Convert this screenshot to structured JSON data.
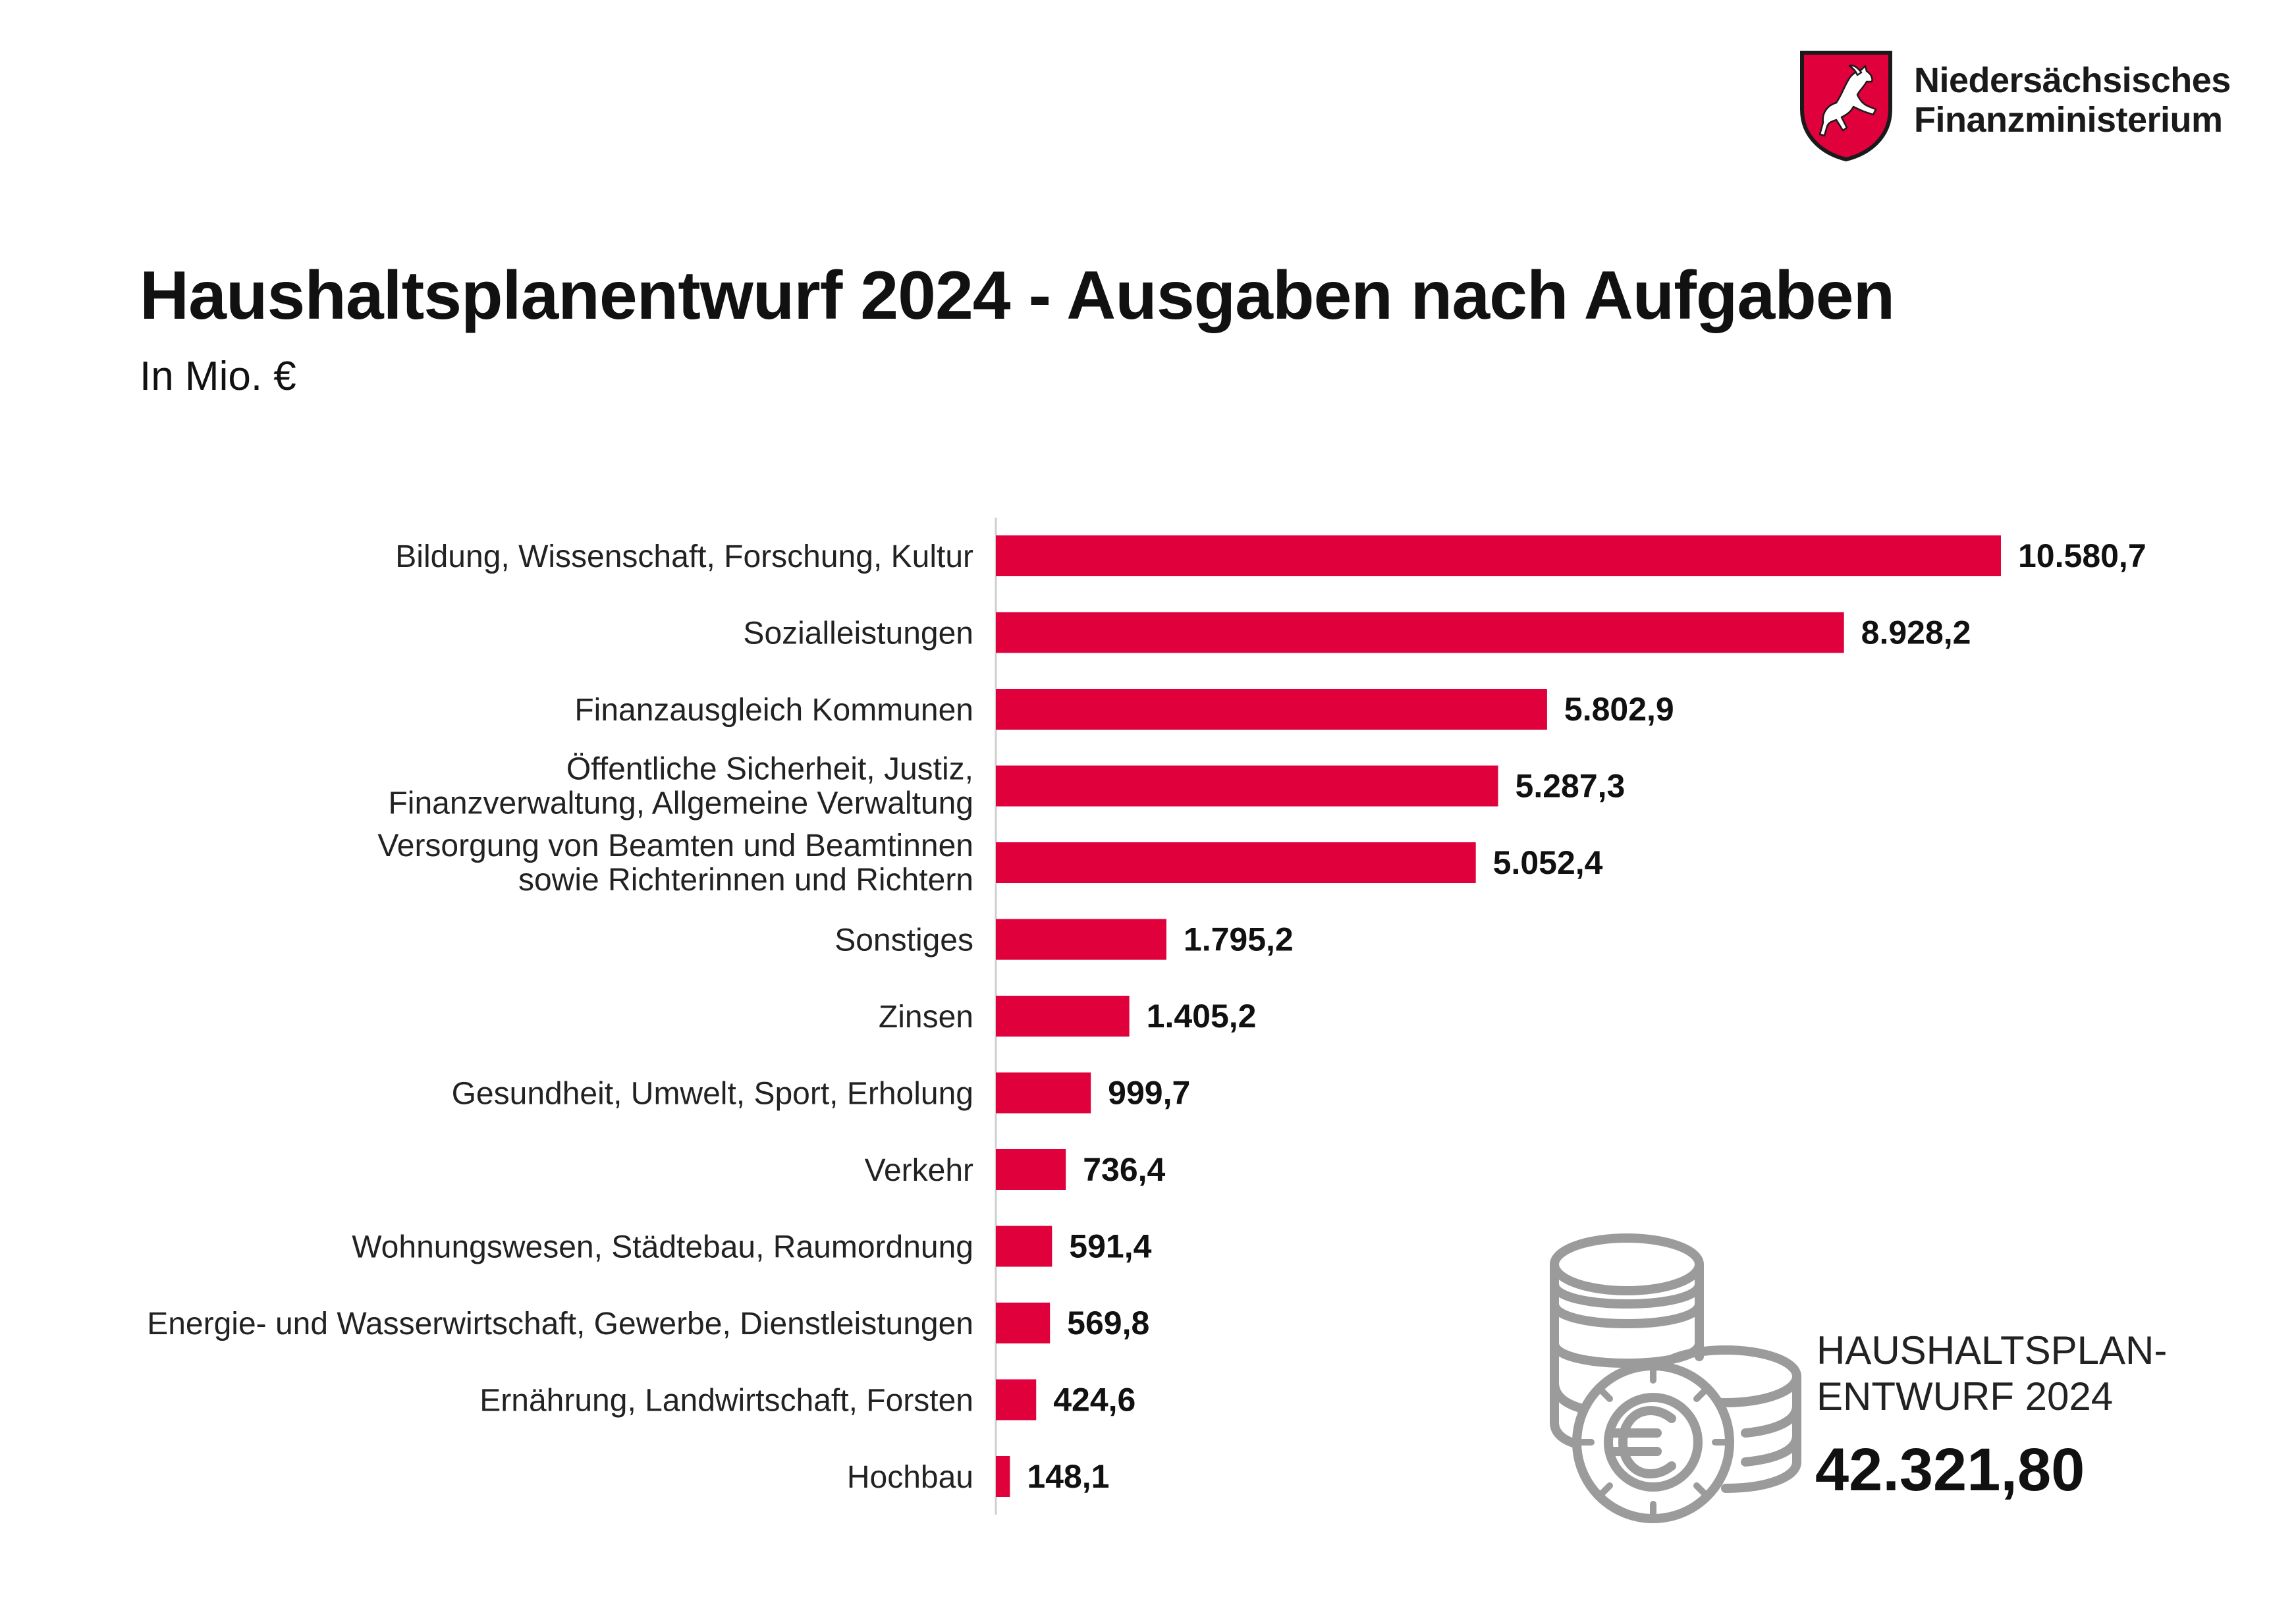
{
  "header": {
    "logo_line1": "Niedersächsisches",
    "logo_line2": "Finanzministerium"
  },
  "colors": {
    "accent": "#e0003c",
    "axis": "#cfcfcf",
    "coin_icon": "#9b9b9b"
  },
  "icons": {
    "logo": "lower-saxony-horse-shield-icon",
    "coins": "euro-coin-stack-icon"
  },
  "chart_data": {
    "type": "bar",
    "orientation": "horizontal",
    "title": "Haushaltsplanentwurf 2024 - Ausgaben nach Aufgaben",
    "subtitle": "In Mio. €",
    "categories": [
      [
        "Bildung, Wissenschaft, Forschung, Kultur"
      ],
      [
        "Sozialleistungen"
      ],
      [
        "Finanzausgleich Kommunen"
      ],
      [
        "Öffentliche Sicherheit, Justiz,",
        "Finanzverwaltung, Allgemeine Verwaltung"
      ],
      [
        "Versorgung von Beamten und Beamtinnen",
        "sowie Richterinnen und Richtern"
      ],
      [
        "Sonstiges"
      ],
      [
        "Zinsen"
      ],
      [
        "Gesundheit, Umwelt, Sport, Erholung"
      ],
      [
        "Verkehr"
      ],
      [
        "Wohnungswesen, Städtebau, Raumordnung"
      ],
      [
        "Energie- und Wasserwirtschaft, Gewerbe, Dienstleistungen"
      ],
      [
        "Ernährung, Landwirtschaft, Forsten"
      ],
      [
        "Hochbau"
      ]
    ],
    "values": [
      10580.7,
      8928.2,
      5802.9,
      5287.3,
      5052.4,
      1795.2,
      1405.2,
      999.7,
      736.4,
      591.4,
      569.8,
      424.6,
      148.1
    ],
    "value_labels": [
      "10.580,7",
      "8.928,2",
      "5.802,9",
      "5.287,3",
      "5.052,4",
      "1.795,2",
      "1.405,2",
      "999,7",
      "736,4",
      "591,4",
      "569,8",
      "424,6",
      "148,1"
    ],
    "xlim": [
      0,
      10580.7
    ],
    "grid": false,
    "legend": "none"
  },
  "total": {
    "caption_line1": "HAUSHALTSPLAN-",
    "caption_line2": "ENTWURF 2024",
    "value": "42.321,80"
  }
}
